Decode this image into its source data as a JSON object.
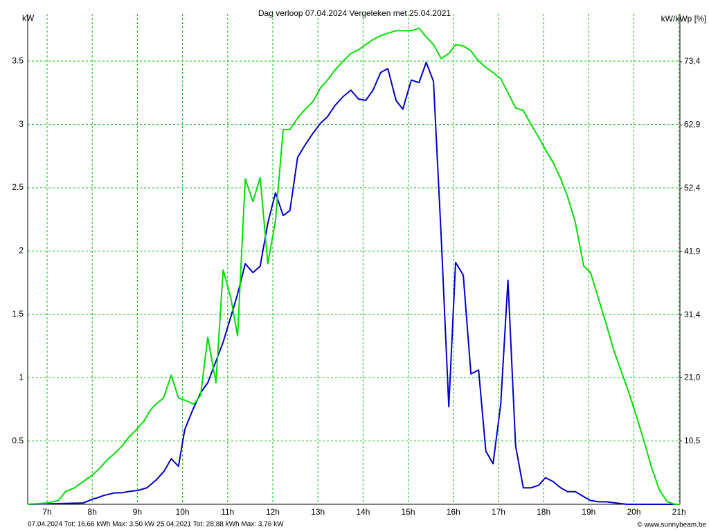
{
  "chart_data": {
    "type": "line",
    "title": "Dag  verloop 07.04.2024   Vergeleken met 25.04.2021",
    "y_label": "kW",
    "y2_label": "kW/kWp [%]",
    "credit": "© www.sunnybeam.be",
    "xlim": [
      6.57,
      21.02
    ],
    "ylim": [
      0,
      3.873
    ],
    "y2lim": [
      0,
      81.33
    ],
    "xticks": [
      {
        "value": 7,
        "label": "7h"
      },
      {
        "value": 8,
        "label": "8h"
      },
      {
        "value": 9,
        "label": "9h"
      },
      {
        "value": 10,
        "label": "10h"
      },
      {
        "value": 11,
        "label": "11h"
      },
      {
        "value": 12,
        "label": "12h"
      },
      {
        "value": 13,
        "label": "13h"
      },
      {
        "value": 14,
        "label": "14h"
      },
      {
        "value": 15,
        "label": "15h"
      },
      {
        "value": 16,
        "label": "16h"
      },
      {
        "value": 17,
        "label": "17h"
      },
      {
        "value": 18,
        "label": "18h"
      },
      {
        "value": 19,
        "label": "19h"
      },
      {
        "value": 20,
        "label": "20h"
      },
      {
        "value": 21,
        "label": "21h"
      }
    ],
    "yticks": [
      0.5,
      1,
      1.5,
      2,
      2.5,
      3,
      3.5
    ],
    "y2ticks": [
      {
        "value": 10.5,
        "label": "10,5"
      },
      {
        "value": 21.0,
        "label": "21,0"
      },
      {
        "value": 31.4,
        "label": "31,4"
      },
      {
        "value": 41.9,
        "label": "41,9"
      },
      {
        "value": 52.4,
        "label": "52,4"
      },
      {
        "value": 62.9,
        "label": "62,9"
      },
      {
        "value": 73.4,
        "label": "73,4"
      }
    ],
    "grid": true,
    "series": [
      {
        "name": "07.04.2024 Tot: 16,66 kWh Max: 3,50 kW",
        "color": "#0000c8",
        "x": [
          6.57,
          7.8,
          8.0,
          8.1,
          8.26,
          8.49,
          8.64,
          8.79,
          9.02,
          9.21,
          9.41,
          9.59,
          9.75,
          9.91,
          10.05,
          10.22,
          10.4,
          10.56,
          10.74,
          10.9,
          11.07,
          11.22,
          11.39,
          11.56,
          11.72,
          11.89,
          12.06,
          12.23,
          12.38,
          12.55,
          12.72,
          12.89,
          13.06,
          13.21,
          13.38,
          13.56,
          13.73,
          13.9,
          14.06,
          14.22,
          14.39,
          14.55,
          14.73,
          14.88,
          15.07,
          15.24,
          15.4,
          15.56,
          15.73,
          15.9,
          16.05,
          16.22,
          16.39,
          16.56,
          16.72,
          16.88,
          17.05,
          17.21,
          17.38,
          17.55,
          17.72,
          17.89,
          18.04,
          18.21,
          18.38,
          18.53,
          18.7,
          18.89,
          19.04,
          19.22,
          19.39,
          19.61,
          19.84,
          21.02
        ],
        "values": [
          0,
          0.01,
          0.04,
          0.05,
          0.07,
          0.09,
          0.09,
          0.1,
          0.11,
          0.13,
          0.19,
          0.26,
          0.36,
          0.3,
          0.59,
          0.74,
          0.88,
          0.96,
          1.13,
          1.28,
          1.48,
          1.66,
          1.9,
          1.83,
          1.88,
          2.22,
          2.46,
          2.28,
          2.32,
          2.74,
          2.84,
          2.93,
          3.01,
          3.06,
          3.15,
          3.22,
          3.27,
          3.2,
          3.19,
          3.27,
          3.41,
          3.44,
          3.19,
          3.12,
          3.35,
          3.33,
          3.49,
          3.34,
          2.12,
          0.77,
          1.91,
          1.81,
          1.03,
          1.06,
          0.42,
          0.32,
          0.79,
          1.77,
          0.46,
          0.13,
          0.13,
          0.15,
          0.21,
          0.18,
          0.13,
          0.1,
          0.1,
          0.06,
          0.03,
          0.02,
          0.02,
          0.01,
          0,
          0
        ]
      },
      {
        "name": "25.04.2021 Tot: 28,88 kWh Max: 3,76 kW",
        "color": "#00e000",
        "x": [
          6.57,
          7.0,
          7.25,
          7.41,
          7.61,
          7.8,
          8.0,
          8.15,
          8.33,
          8.49,
          8.66,
          8.81,
          8.98,
          9.15,
          9.3,
          9.41,
          9.58,
          9.75,
          9.91,
          10.07,
          10.25,
          10.4,
          10.56,
          10.74,
          10.9,
          11.07,
          11.22,
          11.39,
          11.56,
          11.72,
          11.89,
          12.06,
          12.23,
          12.38,
          12.55,
          12.72,
          12.89,
          13.06,
          13.21,
          13.38,
          13.56,
          13.73,
          13.9,
          14.06,
          14.22,
          14.39,
          14.55,
          14.73,
          14.88,
          15.07,
          15.24,
          15.4,
          15.56,
          15.73,
          15.9,
          16.05,
          16.22,
          16.39,
          16.56,
          16.72,
          16.88,
          17.05,
          17.21,
          17.38,
          17.55,
          17.72,
          17.89,
          18.04,
          18.21,
          18.38,
          18.53,
          18.7,
          18.89,
          19.04,
          19.22,
          19.39,
          19.56,
          19.73,
          19.9,
          20.07,
          20.24,
          20.4,
          20.57,
          20.74,
          20.91,
          21.02
        ],
        "values": [
          0,
          0.01,
          0.03,
          0.1,
          0.13,
          0.18,
          0.23,
          0.28,
          0.35,
          0.4,
          0.46,
          0.53,
          0.59,
          0.66,
          0.75,
          0.79,
          0.84,
          1.02,
          0.84,
          0.82,
          0.79,
          0.86,
          1.32,
          0.96,
          1.85,
          1.63,
          1.33,
          2.57,
          2.39,
          2.58,
          1.9,
          2.24,
          2.96,
          2.96,
          3.05,
          3.12,
          3.18,
          3.29,
          3.35,
          3.43,
          3.5,
          3.56,
          3.59,
          3.63,
          3.67,
          3.7,
          3.72,
          3.74,
          3.74,
          3.74,
          3.76,
          3.69,
          3.63,
          3.52,
          3.56,
          3.63,
          3.62,
          3.58,
          3.5,
          3.45,
          3.41,
          3.36,
          3.25,
          3.13,
          3.11,
          3.0,
          2.9,
          2.8,
          2.7,
          2.57,
          2.43,
          2.23,
          1.88,
          1.83,
          1.62,
          1.42,
          1.21,
          1.04,
          0.87,
          0.68,
          0.48,
          0.28,
          0.11,
          0.02,
          0,
          0
        ]
      }
    ]
  }
}
